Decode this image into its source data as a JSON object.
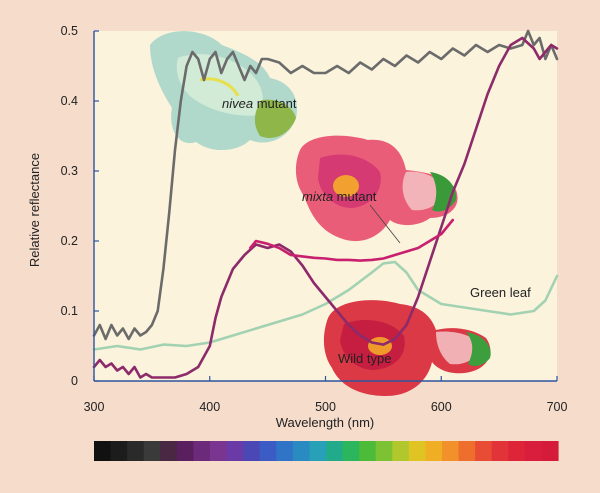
{
  "chart_data": {
    "type": "line",
    "title": "",
    "xlabel": "Wavelength (nm)",
    "ylabel": "Relative reflectance",
    "xlim": [
      300,
      700
    ],
    "ylim": [
      0,
      0.5
    ],
    "x_ticks": [
      300,
      400,
      500,
      600,
      700
    ],
    "y_ticks": [
      0,
      0.1,
      0.2,
      0.3,
      0.4,
      0.5
    ],
    "x_tick_labels": [
      "300",
      "400",
      "500",
      "600",
      "700"
    ],
    "y_tick_labels": [
      "0",
      "0.1",
      "0.2",
      "0.3",
      "0.4",
      "0.5"
    ],
    "grid": false,
    "series": [
      {
        "name": "nivea mutant",
        "label_italic": "nivea",
        "label_rest": " mutant",
        "color": "#6b6b6b",
        "x": [
          300,
          305,
          310,
          315,
          320,
          325,
          330,
          335,
          340,
          345,
          350,
          355,
          360,
          365,
          370,
          375,
          380,
          385,
          390,
          395,
          400,
          405,
          410,
          415,
          420,
          425,
          430,
          435,
          440,
          445,
          450,
          460,
          470,
          480,
          490,
          500,
          510,
          520,
          530,
          540,
          550,
          560,
          570,
          580,
          590,
          600,
          610,
          620,
          630,
          640,
          650,
          660,
          670,
          675,
          680,
          685,
          690,
          695,
          700
        ],
        "y": [
          0.065,
          0.08,
          0.06,
          0.08,
          0.065,
          0.075,
          0.06,
          0.075,
          0.065,
          0.07,
          0.08,
          0.1,
          0.16,
          0.24,
          0.33,
          0.4,
          0.45,
          0.47,
          0.46,
          0.43,
          0.46,
          0.47,
          0.44,
          0.46,
          0.47,
          0.45,
          0.43,
          0.45,
          0.44,
          0.46,
          0.46,
          0.455,
          0.44,
          0.45,
          0.44,
          0.44,
          0.45,
          0.44,
          0.455,
          0.445,
          0.46,
          0.45,
          0.465,
          0.455,
          0.47,
          0.46,
          0.475,
          0.465,
          0.48,
          0.47,
          0.48,
          0.475,
          0.48,
          0.5,
          0.48,
          0.49,
          0.46,
          0.48,
          0.46
        ]
      },
      {
        "name": "mixta mutant",
        "label_italic": "mixta",
        "label_rest": " mutant",
        "color": "#c8206e",
        "x": [
          435,
          440,
          450,
          460,
          470,
          480,
          490,
          500,
          510,
          520,
          530,
          540,
          550,
          560,
          570,
          580,
          590,
          600,
          610
        ],
        "y": [
          0.19,
          0.2,
          0.196,
          0.19,
          0.18,
          0.178,
          0.176,
          0.175,
          0.173,
          0.173,
          0.172,
          0.173,
          0.175,
          0.18,
          0.185,
          0.19,
          0.2,
          0.21,
          0.23
        ]
      },
      {
        "name": "Green leaf",
        "color": "#a2d2b2",
        "x": [
          300,
          320,
          340,
          360,
          380,
          400,
          420,
          440,
          460,
          480,
          500,
          520,
          540,
          550,
          560,
          570,
          580,
          600,
          620,
          640,
          660,
          680,
          690,
          700
        ],
        "y": [
          0.045,
          0.05,
          0.045,
          0.052,
          0.05,
          0.055,
          0.065,
          0.075,
          0.085,
          0.095,
          0.11,
          0.13,
          0.155,
          0.168,
          0.17,
          0.155,
          0.13,
          0.11,
          0.105,
          0.1,
          0.095,
          0.1,
          0.115,
          0.15
        ]
      },
      {
        "name": "Wild type",
        "color": "#8c2a6a",
        "x": [
          300,
          305,
          310,
          315,
          320,
          325,
          330,
          335,
          340,
          345,
          350,
          360,
          370,
          380,
          390,
          400,
          405,
          410,
          420,
          430,
          440,
          450,
          460,
          470,
          480,
          490,
          500,
          510,
          520,
          530,
          540,
          550,
          560,
          570,
          580,
          590,
          600,
          610,
          620,
          630,
          640,
          650,
          660,
          670,
          680,
          685,
          690,
          695,
          700
        ],
        "y": [
          0.02,
          0.03,
          0.02,
          0.025,
          0.015,
          0.02,
          0.01,
          0.02,
          0.005,
          0.01,
          0.005,
          0.005,
          0.005,
          0.01,
          0.02,
          0.05,
          0.09,
          0.12,
          0.16,
          0.18,
          0.195,
          0.19,
          0.195,
          0.185,
          0.165,
          0.14,
          0.12,
          0.1,
          0.08,
          0.065,
          0.055,
          0.052,
          0.06,
          0.08,
          0.12,
          0.17,
          0.22,
          0.27,
          0.31,
          0.36,
          0.41,
          0.45,
          0.48,
          0.49,
          0.475,
          0.46,
          0.47,
          0.48,
          0.475
        ]
      }
    ],
    "spectrum_bar": {
      "colors": [
        "#111111",
        "#1c1c1c",
        "#2a2a2a",
        "#3a3a3a",
        "#4a2844",
        "#5a1f5e",
        "#6b2a7a",
        "#7a3590",
        "#6a3aa6",
        "#4b48b6",
        "#3a5cc4",
        "#2f74c6",
        "#2a8ac2",
        "#27a0b8",
        "#22ab8a",
        "#2bb55c",
        "#4cbb3a",
        "#7cc232",
        "#b0c82c",
        "#e0c424",
        "#f0ae24",
        "#f2902a",
        "#ee6e2e",
        "#e84c34",
        "#e23438",
        "#dd2438",
        "#d81e3c",
        "#d41c3a"
      ]
    }
  },
  "figure": {
    "background": "#f6dccb",
    "plot_background": "#fbf3dc",
    "axis_color": "#2c55a0"
  }
}
